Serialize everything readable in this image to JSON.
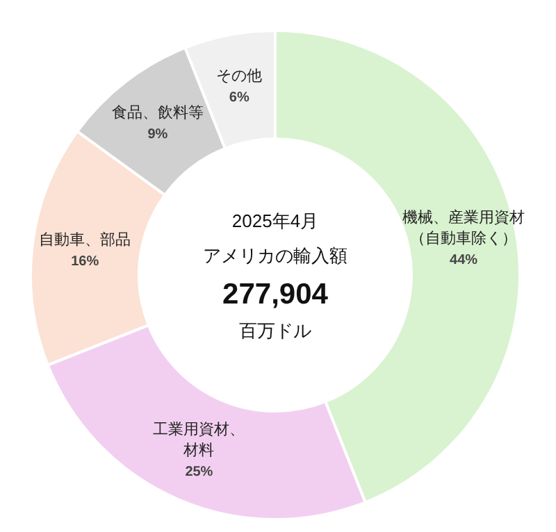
{
  "chart_data": {
    "type": "donut",
    "title": "2025年4月",
    "subtitle": "アメリカの輸入額",
    "annotations": [
      "277,904",
      "百万ドル"
    ],
    "categories": [
      "機械、産業用資材（自動車除く）",
      "工業用資材、材料",
      "自動車、部品",
      "食品、飲料等",
      "その他"
    ],
    "values": [
      44,
      25,
      16,
      9,
      6
    ],
    "value_labels": [
      "44%",
      "25%",
      "16%",
      "9%",
      "6%"
    ],
    "colors": [
      "#d9f2d0",
      "#f2cff0",
      "#fbe2d5",
      "#d0d0d0",
      "#f0f0f0"
    ],
    "legend": false
  }
}
